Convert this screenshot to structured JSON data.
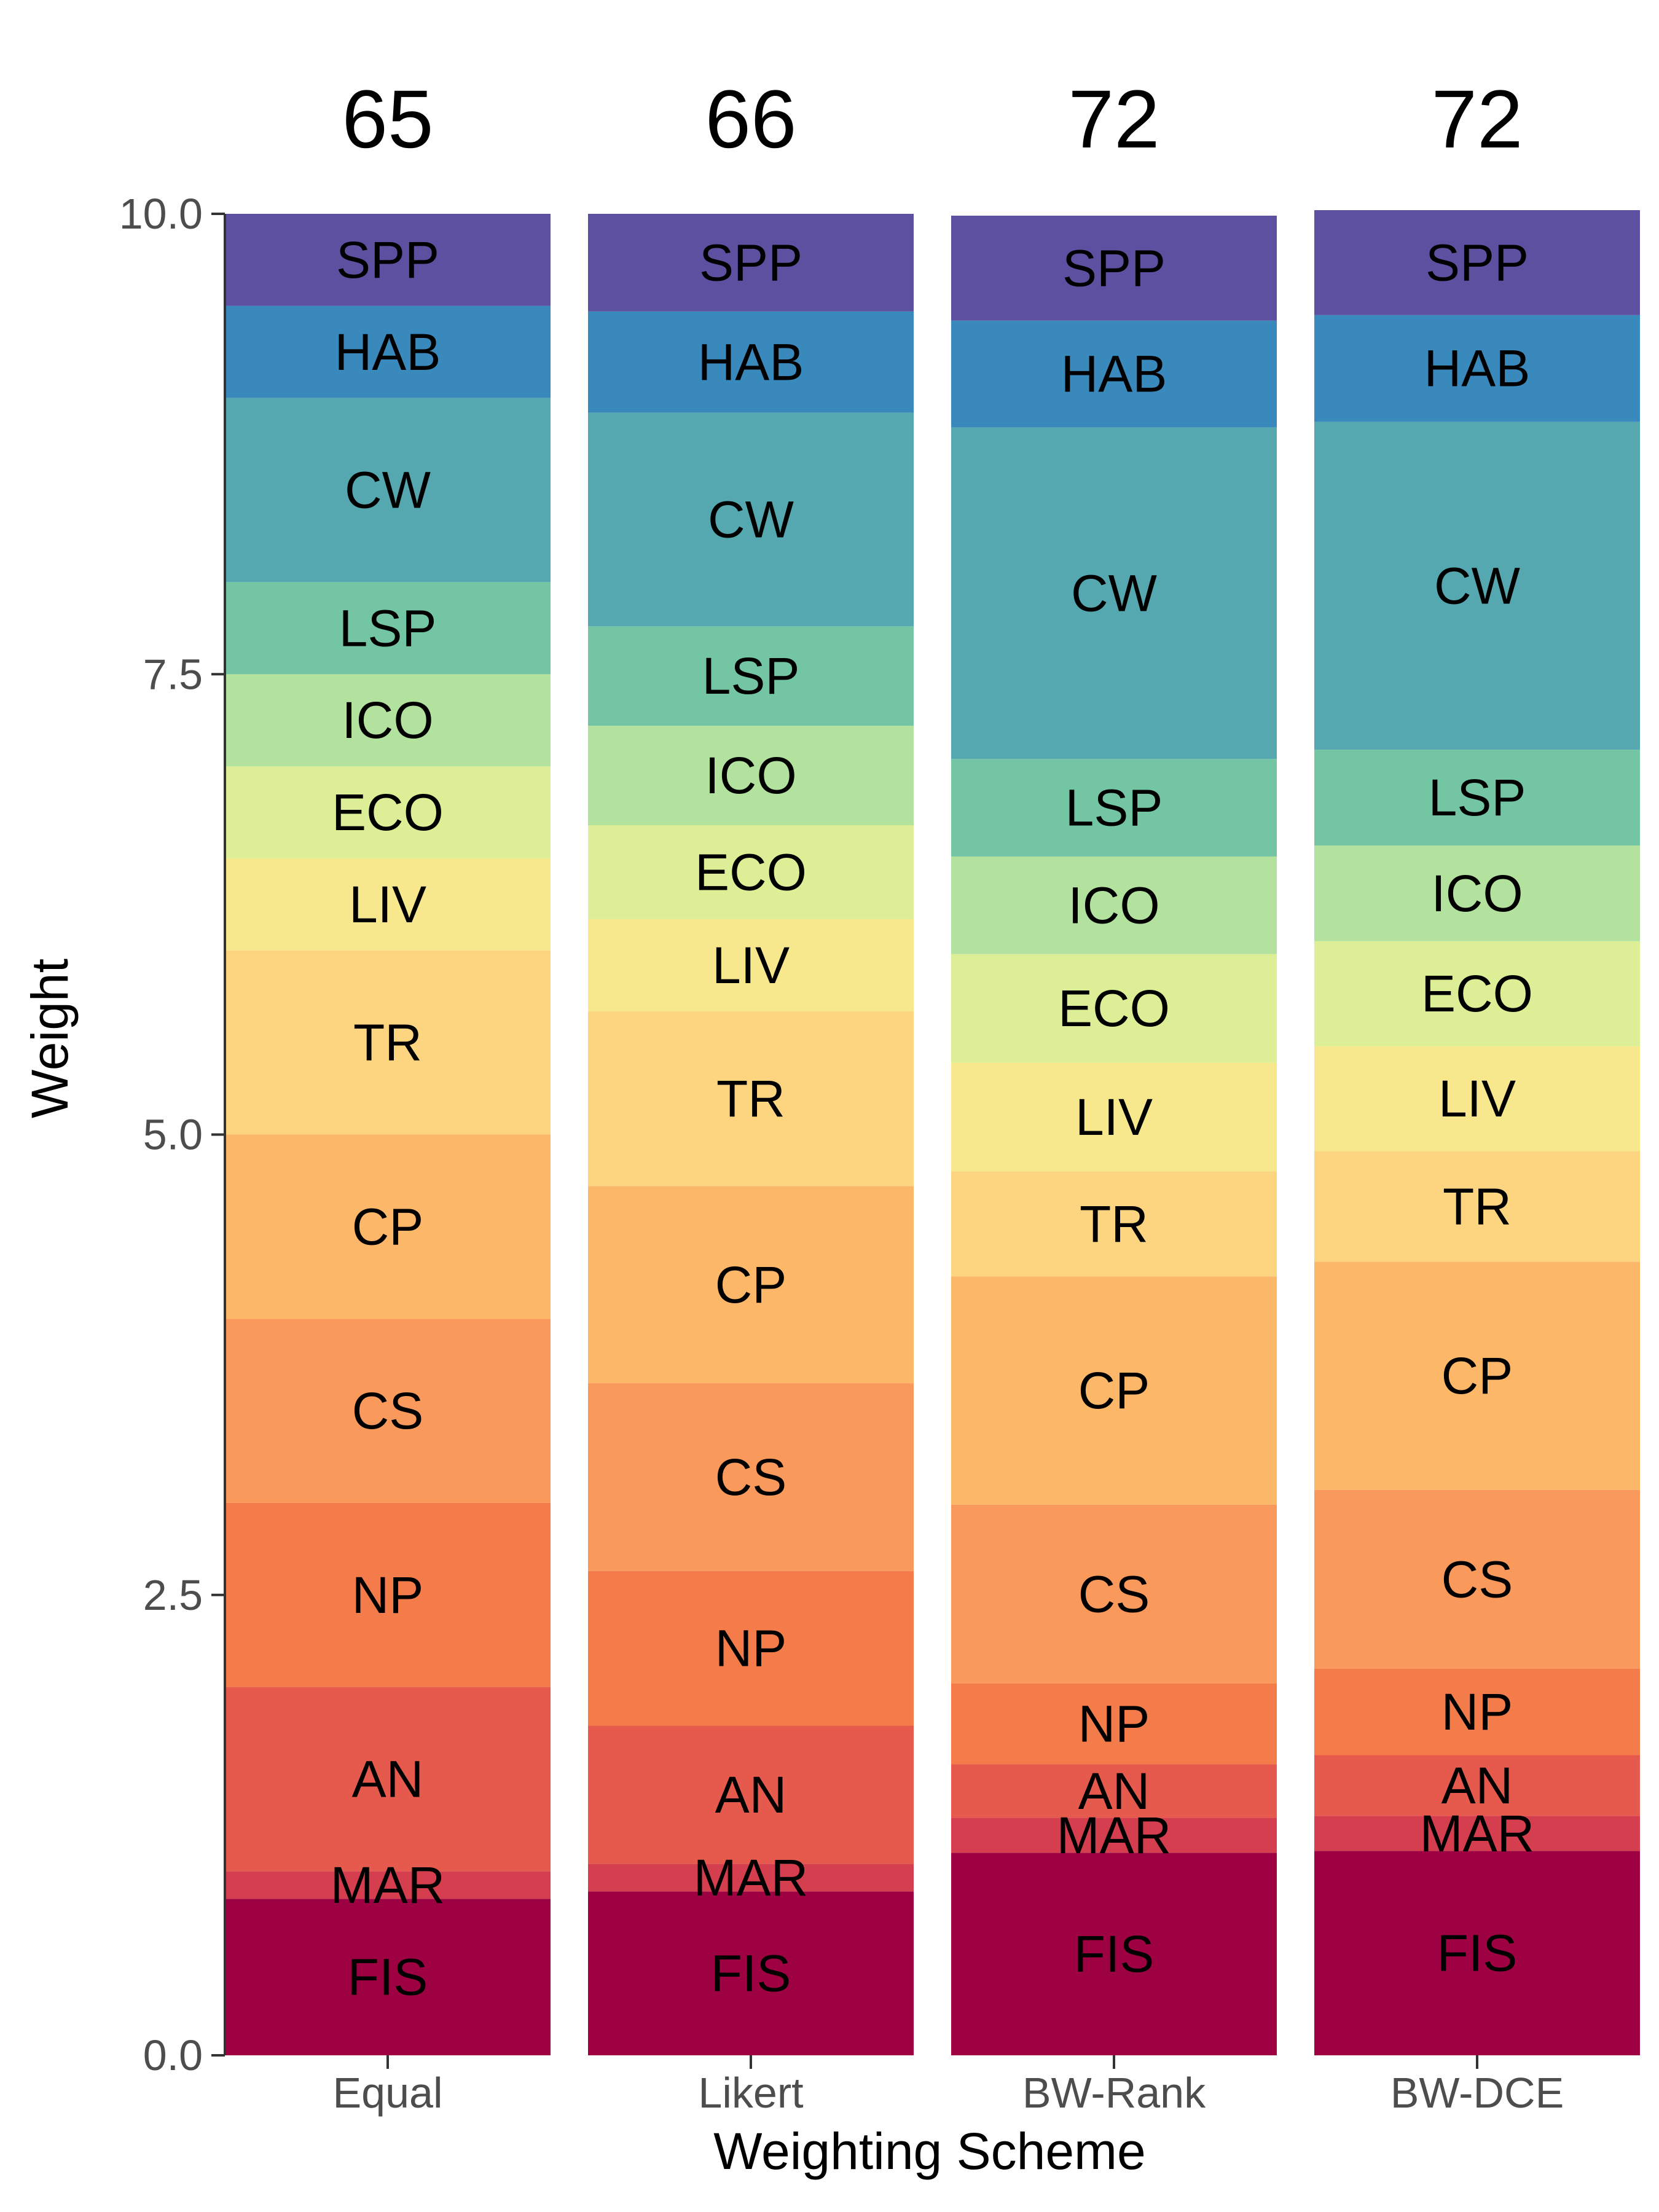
{
  "chart_data": {
    "type": "bar",
    "stacked": true,
    "xlabel": "Weighting Scheme",
    "ylabel": "Weight",
    "ylim": [
      0,
      10
    ],
    "yticks": [
      "0.0",
      "2.5",
      "5.0",
      "7.5",
      "10.0"
    ],
    "ytick_values": [
      0,
      2.5,
      5,
      7.5,
      10
    ],
    "grid": false,
    "categories": [
      "Equal",
      "Likert",
      "BW-Rank",
      "BW-DCE"
    ],
    "scores": [
      "65",
      "66",
      "72",
      "72"
    ],
    "series": [
      {
        "name": "FIS",
        "color": "#9E0142",
        "values": [
          0.85,
          0.89,
          1.1,
          1.11
        ]
      },
      {
        "name": "MAR",
        "color": "#D53E4F",
        "values": [
          0.15,
          0.15,
          0.19,
          0.19
        ]
      },
      {
        "name": "AN",
        "color": "#E65A4D",
        "values": [
          1.0,
          0.75,
          0.29,
          0.33
        ]
      },
      {
        "name": "NP",
        "color": "#F47B4A",
        "values": [
          1.0,
          0.84,
          0.44,
          0.47
        ]
      },
      {
        "name": "CS",
        "color": "#F99A5C",
        "values": [
          1.0,
          1.02,
          0.97,
          0.97
        ]
      },
      {
        "name": "CP",
        "color": "#FDB768",
        "values": [
          1.0,
          1.07,
          1.24,
          1.24
        ]
      },
      {
        "name": "TR",
        "color": "#FDD581",
        "values": [
          1.0,
          0.95,
          0.57,
          0.6
        ]
      },
      {
        "name": "LIV",
        "color": "#F7E78D",
        "values": [
          0.5,
          0.5,
          0.59,
          0.57
        ]
      },
      {
        "name": "ECO",
        "color": "#DCEF96",
        "values": [
          0.5,
          0.51,
          0.59,
          0.57
        ]
      },
      {
        "name": "ICO",
        "color": "#B3E29E",
        "values": [
          0.5,
          0.54,
          0.53,
          0.52
        ]
      },
      {
        "name": "LSP",
        "color": "#73C5A3",
        "values": [
          0.5,
          0.54,
          0.53,
          0.52
        ]
      },
      {
        "name": "CW",
        "color": "#55A8AF",
        "values": [
          1.0,
          1.16,
          1.8,
          1.78
        ]
      },
      {
        "name": "HAB",
        "color": "#3A89BD",
        "values": [
          0.5,
          0.55,
          0.58,
          0.58
        ]
      },
      {
        "name": "SPP",
        "color": "#5D50A1",
        "values": [
          0.5,
          0.53,
          0.57,
          0.57
        ]
      }
    ]
  }
}
